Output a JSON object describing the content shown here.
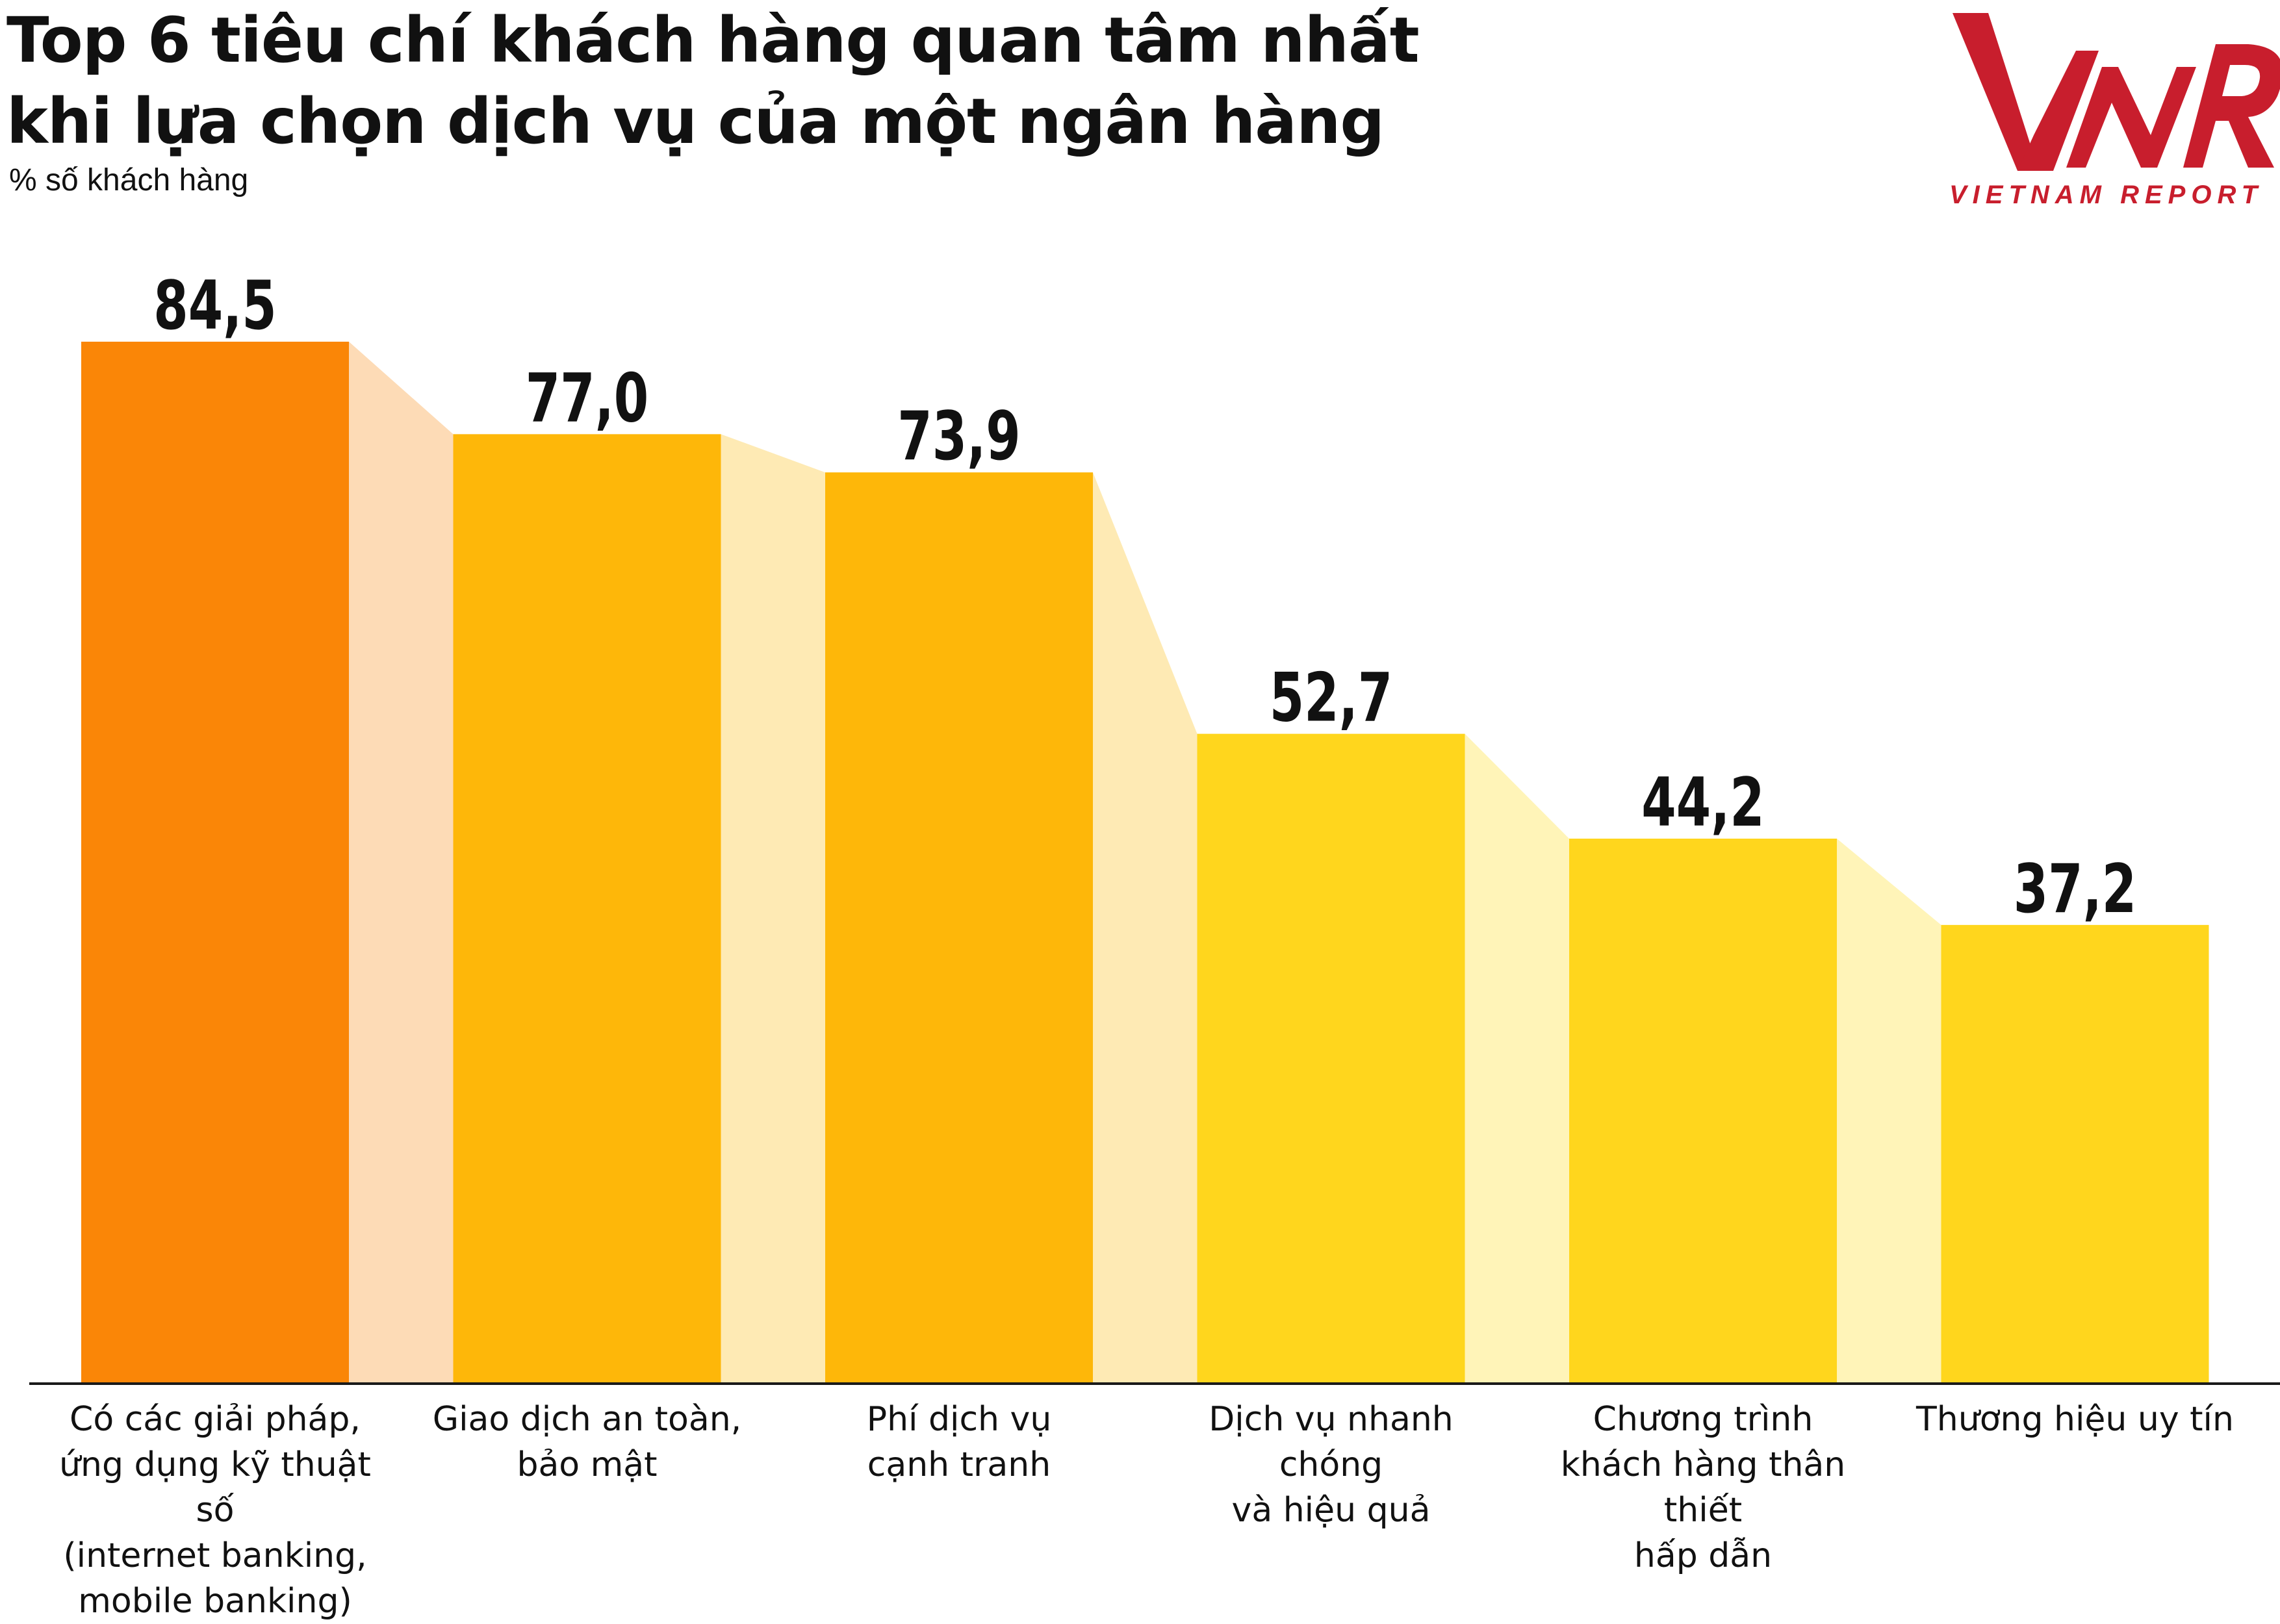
{
  "header": {
    "title_line1": "Top 6 tiêu chí khách hàng quan tâm nhất",
    "title_line2": "khi lựa chọn dịch vụ của một ngân hàng",
    "subtitle": "% số khách hàng"
  },
  "logo": {
    "mark": "VNR",
    "text": "VIETNAM REPORT",
    "color": "#c81e2d"
  },
  "chart_data": {
    "type": "bar",
    "title": "Top 6 tiêu chí khách hàng quan tâm nhất khi lựa chọn dịch vụ của một ngân hàng",
    "ylabel": "% số khách hàng",
    "xlabel": "",
    "ylim": [
      0,
      100
    ],
    "grid": false,
    "legend": "none",
    "categories": [
      "Có các giải pháp, ứng dụng kỹ thuật số (internet banking, mobile banking)",
      "Giao dịch an toàn, bảo mật",
      "Phí dịch vụ cạnh tranh",
      "Dịch vụ nhanh chóng và hiệu quả",
      "Chương trình khách hàng thân thiết hấp dẫn",
      "Thương hiệu uy tín"
    ],
    "category_lines": [
      [
        "Có các giải pháp,",
        "ứng dụng kỹ thuật số",
        "(internet banking,",
        "mobile banking)"
      ],
      [
        "Giao dịch an toàn,",
        "bảo mật"
      ],
      [
        "Phí dịch vụ",
        "cạnh tranh"
      ],
      [
        "Dịch vụ nhanh chóng",
        "và hiệu quả"
      ],
      [
        "Chương trình",
        "khách hàng thân thiết",
        "hấp dẫn"
      ],
      [
        "Thương hiệu uy tín"
      ]
    ],
    "values": [
      84.5,
      77.0,
      73.9,
      52.7,
      44.2,
      37.2
    ],
    "value_labels": [
      "84,5",
      "77,0",
      "73,9",
      "52,7",
      "44,2",
      "37,2"
    ],
    "bar_colors": [
      "#fa8607",
      "#feb709",
      "#feb709",
      "#ffd61d",
      "#ffd61d",
      "#ffd61d"
    ],
    "connector_colors": [
      "#fddbb6",
      "#feeab4",
      "#feeab4",
      "#fff4b8",
      "#fff4b8"
    ]
  }
}
